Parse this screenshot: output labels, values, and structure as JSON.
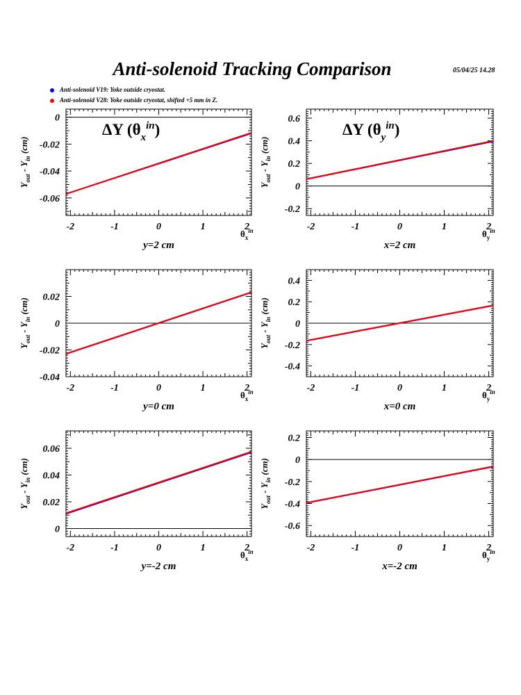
{
  "page": {
    "title": "Anti-solenoid Tracking Comparison",
    "date": "05/04/25   14.28"
  },
  "legend": [
    {
      "label": "Anti-solenoid V19: Yoke outside cryostat.",
      "color": "#0000ff"
    },
    {
      "label": "Anti-solenoid V28: Yoke outside cryostat, shifted +5 mm in Z.",
      "color": "#ff0000"
    }
  ],
  "chart_data": [
    {
      "type": "line",
      "panel_title": {
        "main": "ΔY (θ",
        "sub": "x",
        "sup": "in",
        "close": ")"
      },
      "xlabel": {
        "main": "θ",
        "sub": "x",
        "sup": "in"
      },
      "ylabel": "Y_out - Y_in (cm)",
      "caption": "y=2 cm",
      "xlim": [
        -2.1,
        2.1
      ],
      "ylim": [
        -0.073,
        0.006
      ],
      "xticks": [
        -2,
        -1,
        0,
        1,
        2
      ],
      "xtick_labels": [
        "-2",
        "-1",
        "0",
        "1",
        "2"
      ],
      "yticks": [
        -0.06,
        -0.04,
        -0.02,
        0
      ],
      "ytick_labels": [
        "-0.06",
        "-0.04",
        "-0.02",
        "0"
      ],
      "series": [
        {
          "name": "Anti-solenoid V19: Yoke outside cryostat.",
          "color": "#0000ff",
          "x": [
            -2.1,
            2.1
          ],
          "y": [
            -0.057,
            -0.012
          ]
        },
        {
          "name": "Anti-solenoid V28: Yoke outside cryostat, shifted +5 mm in Z.",
          "color": "#ff0000",
          "x": [
            -2.1,
            2.1
          ],
          "y": [
            -0.057,
            -0.0115
          ]
        }
      ]
    },
    {
      "type": "line",
      "panel_title": {
        "main": "ΔY (θ",
        "sub": "y",
        "sup": "in",
        "close": ")"
      },
      "xlabel": {
        "main": "θ",
        "sub": "y",
        "sup": "in"
      },
      "ylabel": "Y_out - Y_in (cm)",
      "caption": "x=2 cm",
      "xlim": [
        -2.1,
        2.1
      ],
      "ylim": [
        -0.26,
        0.68
      ],
      "xticks": [
        -2,
        -1,
        0,
        1,
        2
      ],
      "xtick_labels": [
        "-2",
        "-1",
        "0",
        "1",
        "2"
      ],
      "yticks": [
        -0.2,
        0,
        0.2,
        0.4,
        0.6
      ],
      "ytick_labels": [
        "-0.2",
        "0",
        "0.2",
        "0.4",
        "0.6"
      ],
      "series": [
        {
          "name": "Anti-solenoid V19: Yoke outside cryostat.",
          "color": "#0000ff",
          "x": [
            -2.1,
            2.1
          ],
          "y": [
            0.06,
            0.395
          ]
        },
        {
          "name": "Anti-solenoid V28: Yoke outside cryostat, shifted +5 mm in Z.",
          "color": "#ff0000",
          "x": [
            -2.1,
            2.1
          ],
          "y": [
            0.062,
            0.4
          ]
        }
      ]
    },
    {
      "type": "line",
      "panel_title": null,
      "xlabel": {
        "main": "θ",
        "sub": "x",
        "sup": "in"
      },
      "ylabel": "Y_out - Y_in (cm)",
      "caption": "y=0 cm",
      "xlim": [
        -2.1,
        2.1
      ],
      "ylim": [
        -0.04,
        0.04
      ],
      "xticks": [
        -2,
        -1,
        0,
        1,
        2
      ],
      "xtick_labels": [
        "-2",
        "-1",
        "0",
        "1",
        "2"
      ],
      "yticks": [
        -0.04,
        -0.02,
        0,
        0.02
      ],
      "ytick_labels": [
        "-0.04",
        "-0.02",
        "0",
        "0.02"
      ],
      "series": [
        {
          "name": "Anti-solenoid V19: Yoke outside cryostat.",
          "color": "#0000ff",
          "x": [
            -2.1,
            2.1
          ],
          "y": [
            -0.023,
            0.023
          ]
        },
        {
          "name": "Anti-solenoid V28: Yoke outside cryostat, shifted +5 mm in Z.",
          "color": "#ff0000",
          "x": [
            -2.1,
            2.1
          ],
          "y": [
            -0.0228,
            0.0232
          ]
        }
      ]
    },
    {
      "type": "line",
      "panel_title": null,
      "xlabel": {
        "main": "θ",
        "sub": "y",
        "sup": "in"
      },
      "ylabel": "Y_out - Y_in (cm)",
      "caption": "x=0 cm",
      "xlim": [
        -2.1,
        2.1
      ],
      "ylim": [
        -0.5,
        0.5
      ],
      "xticks": [
        -2,
        -1,
        0,
        1,
        2
      ],
      "xtick_labels": [
        "-2",
        "-1",
        "0",
        "1",
        "2"
      ],
      "yticks": [
        -0.4,
        -0.2,
        0,
        0.2,
        0.4
      ],
      "ytick_labels": [
        "-0.4",
        "-0.2",
        "0",
        "0.2",
        "0.4"
      ],
      "series": [
        {
          "name": "Anti-solenoid V19: Yoke outside cryostat.",
          "color": "#0000ff",
          "x": [
            -2.1,
            2.1
          ],
          "y": [
            -0.165,
            0.165
          ]
        },
        {
          "name": "Anti-solenoid V28: Yoke outside cryostat, shifted +5 mm in Z.",
          "color": "#ff0000",
          "x": [
            -2.1,
            2.1
          ],
          "y": [
            -0.163,
            0.167
          ]
        }
      ]
    },
    {
      "type": "line",
      "panel_title": null,
      "xlabel": {
        "main": "θ",
        "sub": "x",
        "sup": "in"
      },
      "ylabel": "Y_out - Y_in (cm)",
      "caption": "y=-2 cm",
      "xlim": [
        -2.1,
        2.1
      ],
      "ylim": [
        -0.006,
        0.073
      ],
      "xticks": [
        -2,
        -1,
        0,
        1,
        2
      ],
      "xtick_labels": [
        "-2",
        "-1",
        "0",
        "1",
        "2"
      ],
      "yticks": [
        0,
        0.02,
        0.04,
        0.06
      ],
      "ytick_labels": [
        "0",
        "0.02",
        "0.04",
        "0.06"
      ],
      "series": [
        {
          "name": "Anti-solenoid V19: Yoke outside cryostat.",
          "color": "#0000ff",
          "x": [
            -2.1,
            2.1
          ],
          "y": [
            0.011,
            0.057
          ]
        },
        {
          "name": "Anti-solenoid V28: Yoke outside cryostat, shifted +5 mm in Z.",
          "color": "#ff0000",
          "x": [
            -2.1,
            2.1
          ],
          "y": [
            0.0115,
            0.0575
          ]
        }
      ]
    },
    {
      "type": "line",
      "panel_title": null,
      "xlabel": {
        "main": "θ",
        "sub": "y",
        "sup": "in"
      },
      "ylabel": "Y_out - Y_in (cm)",
      "caption": "x=-2 cm",
      "xlim": [
        -2.1,
        2.1
      ],
      "ylim": [
        -0.7,
        0.26
      ],
      "xticks": [
        -2,
        -1,
        0,
        1,
        2
      ],
      "xtick_labels": [
        "-2",
        "-1",
        "0",
        "1",
        "2"
      ],
      "yticks": [
        -0.6,
        -0.4,
        -0.2,
        0,
        0.2
      ],
      "ytick_labels": [
        "-0.6",
        "-0.4",
        "-0.2",
        "0",
        "0.2"
      ],
      "series": [
        {
          "name": "Anti-solenoid V19: Yoke outside cryostat.",
          "color": "#0000ff",
          "x": [
            -2.1,
            2.1
          ],
          "y": [
            -0.395,
            -0.065
          ]
        },
        {
          "name": "Anti-solenoid V28: Yoke outside cryostat, shifted +5 mm in Z.",
          "color": "#ff0000",
          "x": [
            -2.1,
            2.1
          ],
          "y": [
            -0.393,
            -0.062
          ]
        }
      ]
    }
  ]
}
